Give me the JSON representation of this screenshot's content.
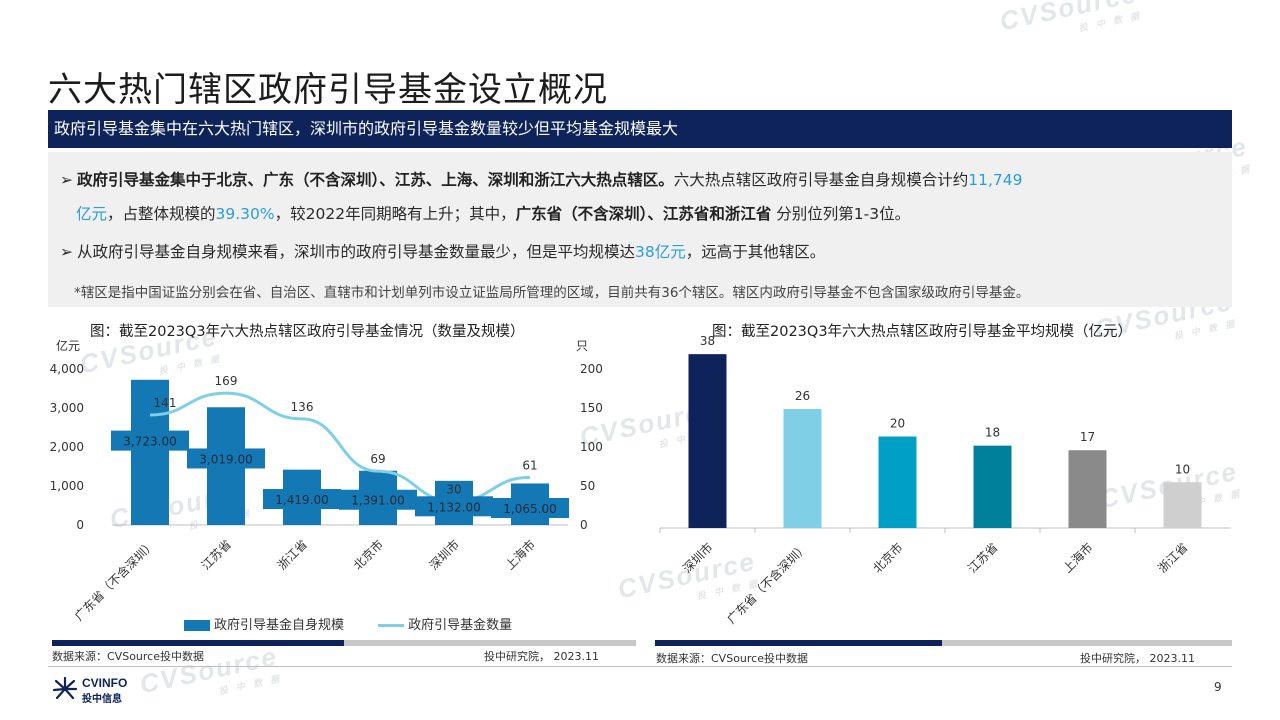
{
  "title": "六大热门辖区政府引导基金设立概况",
  "subtitle": "政府引导基金集中在六大热门辖区，深圳市的政府引导基金数量较少但平均基金规模最大",
  "summary": {
    "b1_bold": "政府引导基金集中于北京、广东（不含深圳）、江苏、上海、深圳和浙江六大热点辖区。",
    "b1_text": "六大热点辖区政府引导基金自身规模合计约",
    "b1_hl1a": "11,749",
    "b1_hl1b": "亿元",
    "b1_text2": "，占整体规模的",
    "b1_hl2": "39.30%",
    "b1_text3": "，较2022年同期略有上升；其中，",
    "b1_bold2": "广东省（不含深圳）、江苏省和浙江省",
    "b1_text4": " 分别位列第1-3位。",
    "b2_text": "从政府引导基金自身规模来看，深圳市的政府引导基金数量最少，但是平均规模达",
    "b2_hl": "38亿元",
    "b2_text2": "，远高于其他辖区。",
    "note": "*辖区是指中国证监分别会在省、自治区、直辖市和计划单列市设立证监局所管理的区域，目前共有36个辖区。辖区内政府引导基金不包含国家级政府引导基金。"
  },
  "watermark": {
    "brand": "CVSource",
    "tagline": "投 中 数 据"
  },
  "chart_data": [
    {
      "type": "bar",
      "title": "图：截至2023Q3年六大热点辖区政府引导基金情况（数量及规模）",
      "ylabel_left": "亿元",
      "ylabel_right": "只",
      "categories": [
        "广东省（不含深圳）",
        "江苏省",
        "浙江省",
        "北京市",
        "深圳市",
        "上海市"
      ],
      "series": [
        {
          "name": "政府引导基金自身规模",
          "type": "bar",
          "axis": "left",
          "color": "#1478b4",
          "values": [
            3723.0,
            3019.0,
            1419.0,
            1391.0,
            1132.0,
            1065.0
          ],
          "labels": [
            "3,723.00",
            "3,019.00",
            "1,419.00",
            "1,391.00",
            "1,132.00",
            "1,065.00"
          ]
        },
        {
          "name": "政府引导基金数量",
          "type": "line",
          "axis": "right",
          "color": "#7fcfe6",
          "values": [
            141,
            169,
            136,
            69,
            30,
            61
          ]
        }
      ],
      "ylim_left": [
        0,
        4000
      ],
      "yticks_left": [
        "0",
        "1,000",
        "2,000",
        "3,000",
        "4,000"
      ],
      "ylim_right": [
        0,
        200
      ],
      "yticks_right": [
        "0",
        "50",
        "100",
        "150",
        "200"
      ],
      "grid": false,
      "legend": "bottom",
      "source": "数据来源：CVSource投中数据",
      "credit": "投中研究院， 2023.11"
    },
    {
      "type": "bar",
      "title": "图：截至2023Q3年六大热点辖区政府引导基金平均规模（亿元）",
      "categories": [
        "深圳市",
        "广东省（不含深圳）",
        "北京市",
        "江苏省",
        "上海市",
        "浙江省"
      ],
      "values": [
        38,
        26,
        20,
        18,
        17,
        10
      ],
      "colors": [
        "#0d2359",
        "#7fcfe6",
        "#00a0c6",
        "#00809a",
        "#8a8a8a",
        "#cfcfcf"
      ],
      "ylim": [
        0,
        40
      ],
      "grid": false,
      "source": "数据来源：CVSource投中数据",
      "credit": "投中研究院， 2023.11"
    }
  ],
  "brand": {
    "name_en": "CVINFO",
    "name_cn": "投中信息"
  },
  "page_number": "9"
}
